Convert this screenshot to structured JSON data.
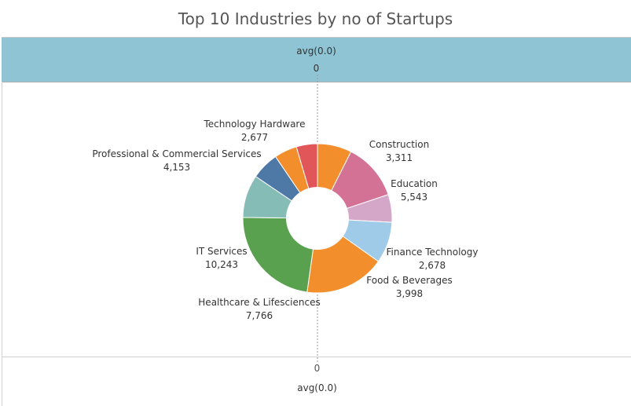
{
  "title": "Top 10 Industries by no of Startups",
  "header": {
    "label": "avg(0.0)",
    "tick": "0"
  },
  "footer": {
    "tick": "0",
    "label": "avg(0.0)"
  },
  "chart_data": {
    "type": "pie",
    "donut": true,
    "title": "Top 10 Industries by no of Startups",
    "categories": [
      "Construction",
      "Education",
      "Finance Technology",
      "Food & Beverages",
      "Healthcare & Lifesciences",
      "IT Services",
      "Professional & Commercial Services",
      "Technology Hardware",
      "",
      ""
    ],
    "values": [
      3311,
      5543,
      2678,
      3998,
      7766,
      10243,
      4153,
      2677,
      2200,
      2040
    ],
    "value_labels": [
      "3,311",
      "5,543",
      "2,678",
      "3,998",
      "7,766",
      "10,243",
      "4,153",
      "2,677",
      "",
      ""
    ],
    "colors": [
      "#f28e2b",
      "#d37295",
      "#d4a6c8",
      "#a0cbe8",
      "#f28e2b",
      "#59a14f",
      "#86bcb6",
      "#4e79a7",
      "#f28e2b",
      "#e15759"
    ],
    "grid": false,
    "legend": "none"
  }
}
